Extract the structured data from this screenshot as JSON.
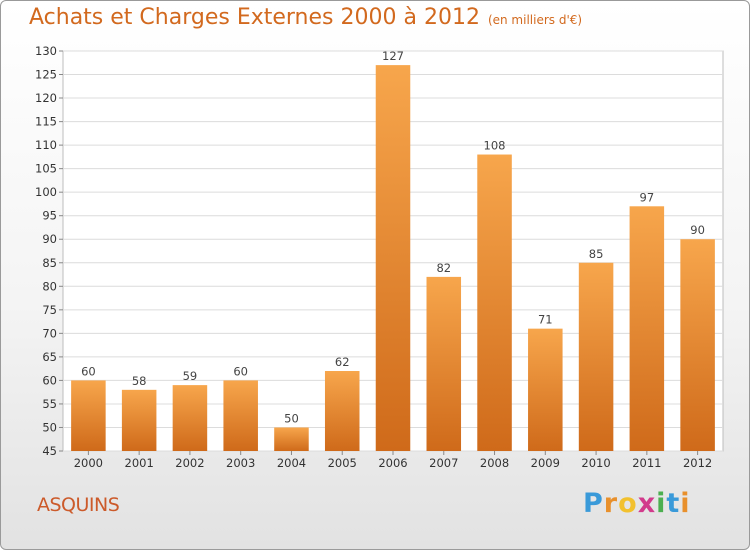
{
  "header": {
    "title": "Achats et Charges Externes 2000 à 2012",
    "subtitle": "(en milliers d'€)"
  },
  "footer": {
    "commune": "ASQUINS",
    "logo_letters": [
      "P",
      "r",
      "o",
      "x",
      "i",
      "t",
      "i"
    ],
    "logo_colors": [
      "#3a9ad9",
      "#e8902c",
      "#f2c12e",
      "#d23b8c",
      "#4caf50",
      "#3a9ad9",
      "#e8902c"
    ]
  },
  "chart_data": {
    "type": "bar",
    "categories": [
      "2000",
      "2001",
      "2002",
      "2003",
      "2004",
      "2005",
      "2006",
      "2007",
      "2008",
      "2009",
      "2010",
      "2011",
      "2012"
    ],
    "values": [
      60,
      58,
      59,
      60,
      50,
      62,
      127,
      82,
      108,
      71,
      85,
      97,
      90
    ],
    "ylim": [
      45,
      130
    ],
    "yticks": [
      45,
      50,
      55,
      60,
      65,
      70,
      75,
      80,
      85,
      90,
      95,
      100,
      105,
      110,
      115,
      120,
      125,
      130
    ],
    "bar_color": "#f0922e",
    "grid": true,
    "title": "Achats et Charges Externes 2000 à 2012",
    "ylabel": "",
    "xlabel": ""
  }
}
